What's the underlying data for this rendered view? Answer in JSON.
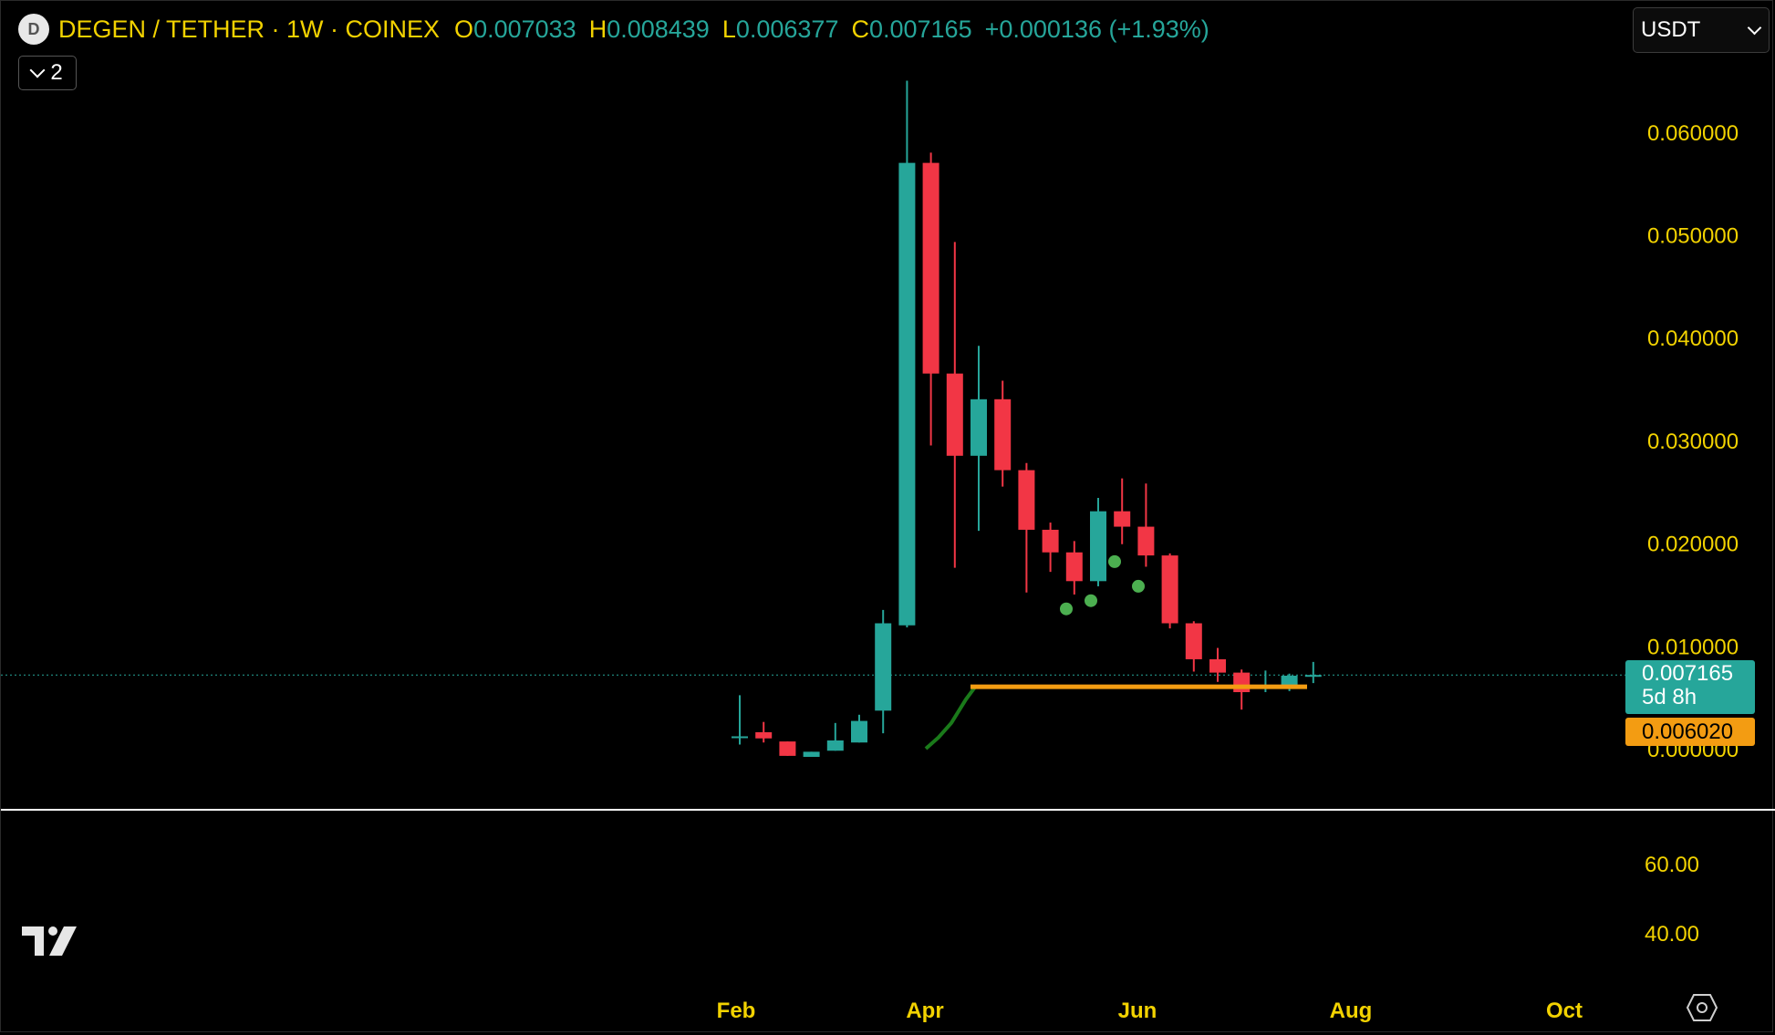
{
  "header": {
    "logo_letter": "D",
    "title": "DEGEN / TETHER · 1W · COINEX",
    "ohlc": [
      {
        "key": "O",
        "value": "0.007033"
      },
      {
        "key": "H",
        "value": "0.008439"
      },
      {
        "key": "L",
        "value": "0.006377"
      },
      {
        "key": "C",
        "value": "0.007165"
      }
    ],
    "change": "+0.000136 (+1.93%)",
    "indicators_toggle_count": "2",
    "currency": "USDT"
  },
  "price_tags": {
    "last_price": "0.007165",
    "countdown": "5d 8h",
    "indicator_value": "0.006020"
  },
  "colors": {
    "up": "#26a69a",
    "down": "#f23645",
    "axis_text": "#f2d200",
    "ma_line": "#1a7a1a",
    "level_line": "#f39c12",
    "dots": "#4caf50",
    "background": "#000000"
  },
  "chart_data": {
    "type": "candlestick",
    "timeframe": "1W",
    "y_ticks": [
      "0.060000",
      "0.050000",
      "0.040000",
      "0.030000",
      "0.020000",
      "0.010000",
      "0.000000"
    ],
    "y_range": [
      -0.0015,
      0.065
    ],
    "x_ticks": [
      "Feb",
      "Apr",
      "Jun",
      "Aug",
      "Oct"
    ],
    "candles": [
      {
        "o": 0.0012,
        "h": 0.0052,
        "l": 0.0004,
        "c": 0.0012
      },
      {
        "o": 0.0016,
        "h": 0.0026,
        "l": 0.0006,
        "c": 0.001
      },
      {
        "o": 0.0007,
        "h": 0.0007,
        "l": -0.0007,
        "c": -0.0007
      },
      {
        "o": -0.0008,
        "h": -0.0003,
        "l": -0.0008,
        "c": -0.0003
      },
      {
        "o": -0.0002,
        "h": 0.0025,
        "l": -0.0002,
        "c": 0.0008
      },
      {
        "o": 0.0006,
        "h": 0.0033,
        "l": 0.0006,
        "c": 0.0027
      },
      {
        "o": 0.0037,
        "h": 0.0135,
        "l": 0.0015,
        "c": 0.0122
      },
      {
        "o": 0.012,
        "h": 0.065,
        "l": 0.0118,
        "c": 0.057
      },
      {
        "o": 0.057,
        "h": 0.058,
        "l": 0.0295,
        "c": 0.0365
      },
      {
        "o": 0.0365,
        "h": 0.0493,
        "l": 0.0176,
        "c": 0.0285
      },
      {
        "o": 0.0285,
        "h": 0.0392,
        "l": 0.0212,
        "c": 0.034
      },
      {
        "o": 0.034,
        "h": 0.0358,
        "l": 0.0255,
        "c": 0.0271
      },
      {
        "o": 0.0271,
        "h": 0.0278,
        "l": 0.0152,
        "c": 0.0213
      },
      {
        "o": 0.0213,
        "h": 0.022,
        "l": 0.0172,
        "c": 0.0191
      },
      {
        "o": 0.0191,
        "h": 0.0202,
        "l": 0.015,
        "c": 0.0163
      },
      {
        "o": 0.0163,
        "h": 0.0244,
        "l": 0.0158,
        "c": 0.0231
      },
      {
        "o": 0.0231,
        "h": 0.0263,
        "l": 0.0199,
        "c": 0.0216
      },
      {
        "o": 0.0216,
        "h": 0.0258,
        "l": 0.0177,
        "c": 0.0188
      },
      {
        "o": 0.0188,
        "h": 0.019,
        "l": 0.0117,
        "c": 0.0122
      },
      {
        "o": 0.0122,
        "h": 0.0124,
        "l": 0.0075,
        "c": 0.0087
      },
      {
        "o": 0.0087,
        "h": 0.0098,
        "l": 0.0065,
        "c": 0.0074
      },
      {
        "o": 0.0074,
        "h": 0.0077,
        "l": 0.0038,
        "c": 0.0055
      },
      {
        "o": 0.0059,
        "h": 0.0076,
        "l": 0.0055,
        "c": 0.0061
      },
      {
        "o": 0.006,
        "h": 0.0073,
        "l": 0.0056,
        "c": 0.0071
      },
      {
        "o": 0.00703,
        "h": 0.00844,
        "l": 0.00638,
        "c": 0.00717
      }
    ],
    "overlays": {
      "ma_line": [
        0.0,
        null,
        0.002,
        0.005,
        0.006
      ],
      "level_line": 0.00602,
      "dots": [
        0.0136,
        0.0144,
        0.0182,
        0.0158
      ],
      "last_price": 0.007165
    },
    "sub_pane": {
      "y_ticks": [
        "60.00",
        "40.00"
      ]
    }
  }
}
